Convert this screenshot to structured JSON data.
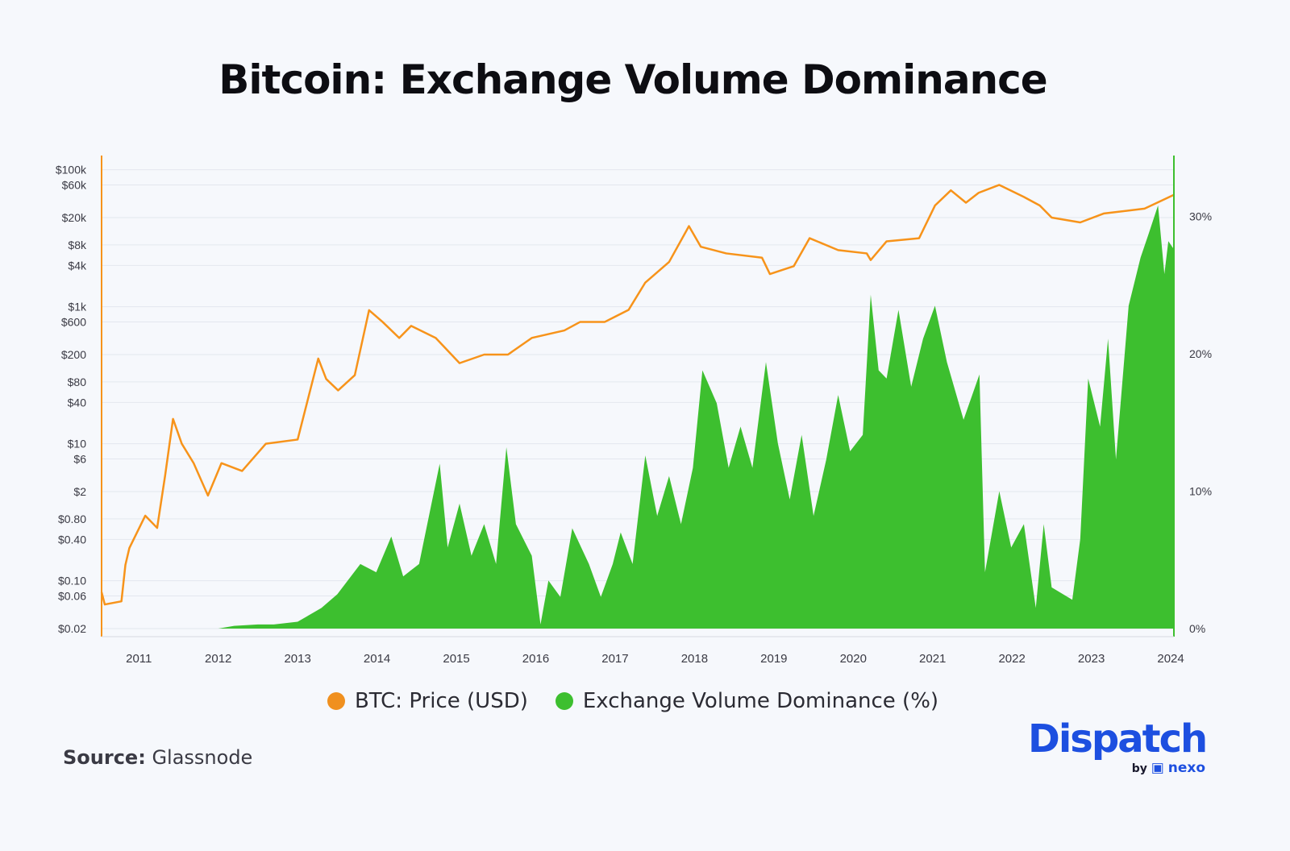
{
  "chart_data": {
    "type": "area+line",
    "title": "Bitcoin: Exchange Volume Dominance",
    "x_ticks": [
      "2011",
      "2012",
      "2013",
      "2014",
      "2015",
      "2016",
      "2017",
      "2018",
      "2019",
      "2020",
      "2021",
      "2022",
      "2023",
      "2024"
    ],
    "xlim": [
      2010.53,
      2024.04
    ],
    "y_left": {
      "scale": "log",
      "lim": [
        0.02,
        158000
      ],
      "color": "#f7931a",
      "ticks": [
        {
          "v": 100000,
          "label": "$100k"
        },
        {
          "v": 60000,
          "label": "$60k"
        },
        {
          "v": 20000,
          "label": "$20k"
        },
        {
          "v": 8000,
          "label": "$8k"
        },
        {
          "v": 4000,
          "label": "$4k"
        },
        {
          "v": 1000,
          "label": "$1k"
        },
        {
          "v": 600,
          "label": "$600"
        },
        {
          "v": 200,
          "label": "$200"
        },
        {
          "v": 80,
          "label": "$80"
        },
        {
          "v": 40,
          "label": "$40"
        },
        {
          "v": 10,
          "label": "$10"
        },
        {
          "v": 6,
          "label": "$6"
        },
        {
          "v": 2,
          "label": "$2"
        },
        {
          "v": 0.8,
          "label": "$0.80"
        },
        {
          "v": 0.4,
          "label": "$0.40"
        },
        {
          "v": 0.1,
          "label": "$0.10"
        },
        {
          "v": 0.06,
          "label": "$0.06"
        },
        {
          "v": 0.02,
          "label": "$0.02"
        }
      ]
    },
    "y_right": {
      "scale": "linear",
      "lim": [
        0,
        34.5
      ],
      "color": "#3dbf2f",
      "ticks": [
        {
          "v": 0,
          "label": "0%"
        },
        {
          "v": 10,
          "label": "10%"
        },
        {
          "v": 20,
          "label": "20%"
        },
        {
          "v": 30,
          "label": "30%"
        }
      ]
    },
    "grid": true,
    "legend_position": "bottom",
    "series": [
      {
        "name": "BTC: Price (USD)",
        "type": "line",
        "axis": "left",
        "color": "#f7931a",
        "x": [
          2010.53,
          2010.57,
          2010.78,
          2010.83,
          2010.88,
          2011.08,
          2011.23,
          2011.33,
          2011.43,
          2011.54,
          2011.69,
          2011.87,
          2012.04,
          2012.3,
          2012.6,
          2013.0,
          2013.26,
          2013.36,
          2013.51,
          2013.72,
          2013.9,
          2014.07,
          2014.28,
          2014.43,
          2014.74,
          2015.04,
          2015.35,
          2015.65,
          2015.95,
          2016.36,
          2016.56,
          2016.87,
          2017.17,
          2017.38,
          2017.68,
          2017.93,
          2018.08,
          2018.4,
          2018.85,
          2018.95,
          2019.25,
          2019.45,
          2019.81,
          2020.17,
          2020.22,
          2020.42,
          2020.83,
          2021.03,
          2021.23,
          2021.42,
          2021.58,
          2021.84,
          2022.15,
          2022.35,
          2022.5,
          2022.86,
          2023.16,
          2023.67,
          2024.04
        ],
        "y": [
          0.068,
          0.045,
          0.05,
          0.17,
          0.3,
          0.89,
          0.59,
          3.4,
          23,
          10,
          5.2,
          1.75,
          5.2,
          4.0,
          10,
          11.5,
          175,
          88,
          60,
          100,
          890,
          600,
          350,
          525,
          350,
          150,
          200,
          200,
          350,
          450,
          600,
          600,
          900,
          2250,
          4500,
          15000,
          7500,
          6000,
          5200,
          3000,
          3900,
          10000,
          6700,
          6000,
          4800,
          9000,
          10000,
          30000,
          50000,
          33000,
          46000,
          60000,
          40000,
          30000,
          20000,
          17000,
          23000,
          27000,
          43000
        ]
      },
      {
        "name": "Exchange Volume Dominance (%)",
        "type": "area",
        "axis": "right",
        "color": "#3dbf2f",
        "x": [
          2010.53,
          2012.0,
          2012.2,
          2012.5,
          2012.7,
          2013.0,
          2013.3,
          2013.5,
          2013.79,
          2013.99,
          2014.18,
          2014.33,
          2014.53,
          2014.79,
          2014.89,
          2015.04,
          2015.19,
          2015.35,
          2015.5,
          2015.63,
          2015.75,
          2015.95,
          2016.06,
          2016.16,
          2016.31,
          2016.46,
          2016.67,
          2016.82,
          2016.97,
          2017.07,
          2017.22,
          2017.38,
          2017.53,
          2017.68,
          2017.83,
          2017.98,
          2018.1,
          2018.28,
          2018.43,
          2018.58,
          2018.73,
          2018.9,
          2019.05,
          2019.2,
          2019.35,
          2019.5,
          2019.66,
          2019.81,
          2019.96,
          2020.12,
          2020.22,
          2020.32,
          2020.42,
          2020.57,
          2020.73,
          2020.88,
          2021.03,
          2021.18,
          2021.39,
          2021.59,
          2021.66,
          2021.84,
          2021.99,
          2022.15,
          2022.3,
          2022.4,
          2022.5,
          2022.76,
          2022.86,
          2022.96,
          2023.11,
          2023.21,
          2023.31,
          2023.47,
          2023.62,
          2023.72,
          2023.84,
          2023.92,
          2023.97,
          2024.04
        ],
        "y": [
          0,
          0,
          0.2,
          0.3,
          0.3,
          0.5,
          1.5,
          2.5,
          4.7,
          4.1,
          6.7,
          3.8,
          4.7,
          12,
          5.9,
          9.1,
          5.3,
          7.6,
          4.7,
          13.2,
          7.6,
          5.3,
          0.3,
          3.5,
          2.3,
          7.3,
          4.7,
          2.3,
          4.7,
          7,
          4.7,
          12.6,
          8.2,
          11.1,
          7.6,
          11.7,
          18.8,
          16.4,
          11.7,
          14.7,
          11.7,
          19.4,
          13.5,
          9.4,
          14.1,
          8.2,
          12.3,
          17,
          12.9,
          14.1,
          24.3,
          18.8,
          18.2,
          23.2,
          17.6,
          21.1,
          23.5,
          19.4,
          15.2,
          18.5,
          4.1,
          10,
          5.9,
          7.6,
          1.5,
          7.6,
          3.0,
          2.1,
          6.5,
          18.2,
          14.7,
          21.1,
          12.3,
          23.5,
          27,
          28.7,
          30.8,
          25.8,
          28.2,
          27.6
        ]
      }
    ]
  },
  "legend": [
    {
      "label": "BTC: Price (USD)",
      "color": "#f7931a"
    },
    {
      "label": "Exchange Volume Dominance (%)",
      "color": "#3dbf2f"
    }
  ],
  "source": {
    "label": "Source:",
    "value": "Glassnode"
  },
  "logo": {
    "name": "Dispatch",
    "by": "by",
    "partner": "nexo"
  }
}
